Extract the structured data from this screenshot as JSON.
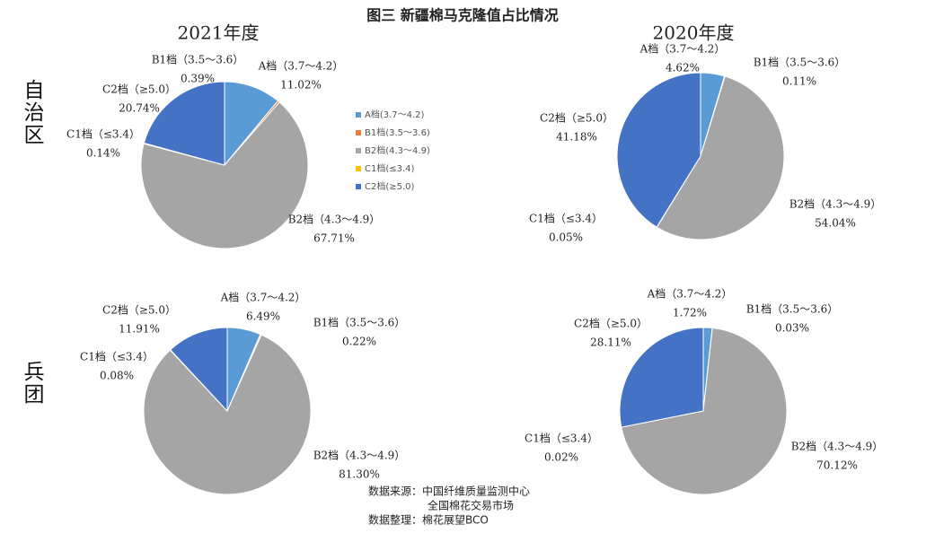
{
  "title": "图三  新疆棉马克隆值占比情况",
  "columns": [
    "2021年度",
    "2020年度"
  ],
  "rows": [
    "自治区",
    "兵团"
  ],
  "legend": [
    "A档(3.7～4.2)",
    "B1档(3.5～3.6)",
    "B2档(4.3～4.9)",
    "C1档(≤3.4)",
    "C2档(≥5.0)"
  ],
  "source": [
    "数据来源：中国纤维质量监测中心",
    "全国棉花交易市场",
    "数据整理：棉花展望BCO"
  ],
  "chart_data": [
    {
      "type": "pie",
      "categories": [
        "A档（3.7～4.2）",
        "B1档（3.5～3.6）",
        "B2档（4.3～4.9）",
        "C1档（≤3.4）",
        "C2档（≥5.0）"
      ],
      "values": [
        11.02,
        0.39,
        67.71,
        0.14,
        20.74
      ],
      "value_labels": [
        "11.02%",
        "0.39%",
        "67.71%",
        "0.14%",
        "20.74%"
      ],
      "colors": [
        "#5b9bd5",
        "#ed7d31",
        "#a5a5a5",
        "#ffc000",
        "#4472c4"
      ]
    },
    {
      "type": "pie",
      "categories": [
        "A档（3.7～4.2）",
        "B1档（3.5～3.6）",
        "B2档（4.3～4.9）",
        "C1档（≤3.4）",
        "C2档（≥5.0）"
      ],
      "values": [
        4.62,
        0.11,
        54.04,
        0.05,
        41.18
      ],
      "value_labels": [
        "4.62%",
        "0.11%",
        "54.04%",
        "0.05%",
        "41.18%"
      ],
      "colors": [
        "#5b9bd5",
        "#ed7d31",
        "#a5a5a5",
        "#ffc000",
        "#4472c4"
      ]
    },
    {
      "type": "pie",
      "categories": [
        "A档（3.7～4.2）",
        "B1档（3.5～3.6）",
        "B2档（4.3～4.9）",
        "C1档（≤3.4）",
        "C2档（≥5.0）"
      ],
      "values": [
        6.49,
        0.22,
        81.3,
        0.08,
        11.91
      ],
      "value_labels": [
        "6.49%",
        "0.22%",
        "81.30%",
        "0.08%",
        "11.91%"
      ],
      "colors": [
        "#5b9bd5",
        "#ed7d31",
        "#a5a5a5",
        "#ffc000",
        "#4472c4"
      ]
    },
    {
      "type": "pie",
      "categories": [
        "A档（3.7～4.2）",
        "B1档（3.5～3.6）",
        "B2档（4.3～4.9）",
        "C1档（≤3.4）",
        "C2档（≥5.0）"
      ],
      "values": [
        1.72,
        0.03,
        70.12,
        0.02,
        28.11
      ],
      "value_labels": [
        "1.72%",
        "0.03%",
        "70.12%",
        "0.02%",
        "28.11%"
      ],
      "colors": [
        "#5b9bd5",
        "#ed7d31",
        "#a5a5a5",
        "#ffc000",
        "#4472c4"
      ]
    }
  ]
}
